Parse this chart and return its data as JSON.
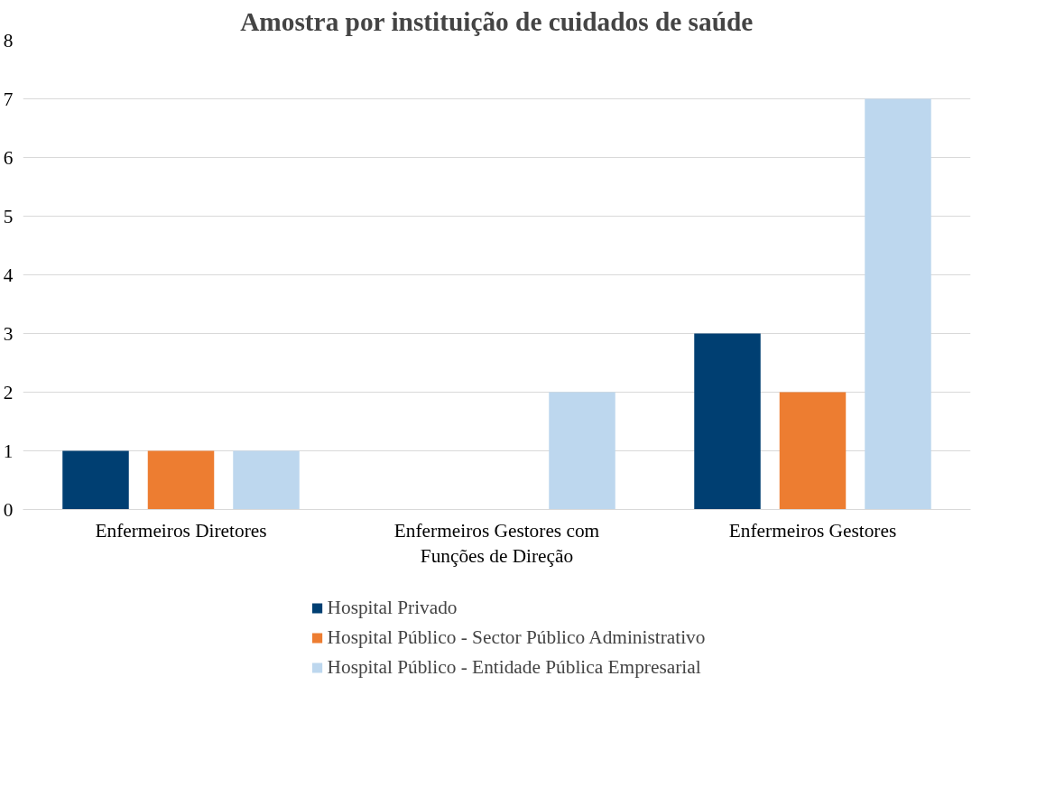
{
  "chart_data": {
    "type": "bar",
    "title": "Amostra por instituição de cuidados de saúde",
    "categories": [
      "Enfermeiros Diretores",
      "Enfermeiros Gestores com Funções de Direção",
      "Enfermeiros Gestores"
    ],
    "series": [
      {
        "name": "Hospital Privado",
        "color": "#003f72",
        "values": [
          1,
          0,
          3
        ]
      },
      {
        "name": "Hospital Público - Sector Público Administrativo",
        "color": "#ed7d31",
        "values": [
          1,
          0,
          2
        ]
      },
      {
        "name": "Hospital Público - Entidade Pública Empresarial",
        "color": "#bdd7ee",
        "values": [
          1,
          2,
          7
        ]
      }
    ],
    "ylim": [
      0,
      8
    ],
    "yticks": [
      0,
      1,
      2,
      3,
      4,
      5,
      6,
      7,
      8
    ],
    "grid": "y",
    "legend": "bottom"
  }
}
